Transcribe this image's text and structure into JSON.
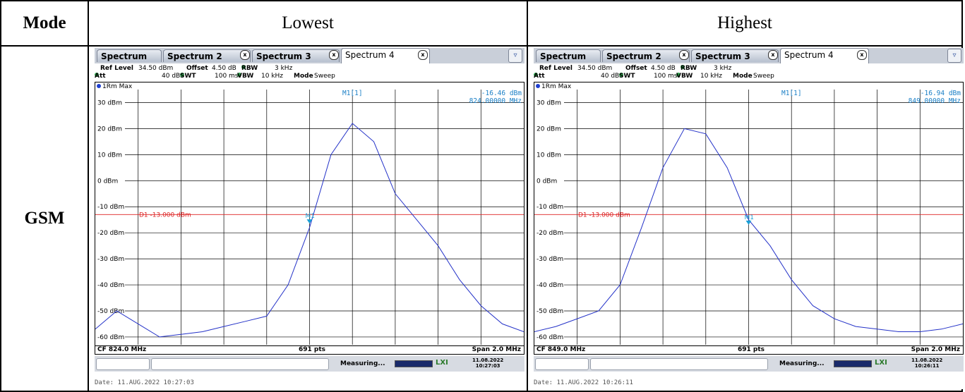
{
  "table": {
    "header": {
      "mode": "Mode",
      "lowest": "Lowest",
      "highest": "Highest"
    },
    "row_label": "GSM"
  },
  "panels": [
    {
      "tabs": [
        "Spectrum",
        "Spectrum 2",
        "Spectrum 3",
        "Spectrum 4"
      ],
      "ref_level_label": "Ref Level",
      "ref_level": "34.50 dBm",
      "offset_label": "Offset",
      "offset": "4.50 dB",
      "rbw_label": "RBW",
      "rbw": "3 kHz",
      "att_label": "Att",
      "att": "40 dB",
      "swt_label": "SWT",
      "swt": "100 ms",
      "vbw_label": "VBW",
      "vbw": "10 kHz",
      "mode_label": "Mode",
      "mode": "Sweep",
      "trace_label": "1Rm Max",
      "marker_name": "M1[1]",
      "marker_level": "-16.46 dBm",
      "marker_freq": "824.00000 MHz",
      "marker_tag": "M1",
      "display_line": "D1 -13.000 dBm",
      "cf": "CF 824.0 MHz",
      "pts": "691 pts",
      "span": "Span 2.0 MHz",
      "measuring": "Measuring...",
      "status_date": "11.08.2022",
      "status_time": "10:27:03",
      "date_footer": "Date: 11.AUG.2022  10:27:03"
    },
    {
      "tabs": [
        "Spectrum",
        "Spectrum 2",
        "Spectrum 3",
        "Spectrum 4"
      ],
      "ref_level_label": "Ref Level",
      "ref_level": "34.50 dBm",
      "offset_label": "Offset",
      "offset": "4.50 dB",
      "rbw_label": "RBW",
      "rbw": "3 kHz",
      "att_label": "Att",
      "att": "40 dB",
      "swt_label": "SWT",
      "swt": "100 ms",
      "vbw_label": "VBW",
      "vbw": "10 kHz",
      "mode_label": "Mode",
      "mode": "Sweep",
      "trace_label": "1Rm Max",
      "marker_name": "M1[1]",
      "marker_level": "-16.94 dBm",
      "marker_freq": "849.00000 MHz",
      "marker_tag": "M1",
      "display_line": "D1 -13.000 dBm",
      "cf": "CF 849.0 MHz",
      "pts": "691 pts",
      "span": "Span 2.0 MHz",
      "measuring": "Measuring...",
      "status_date": "11.08.2022",
      "status_time": "10:26:11",
      "date_footer": "Date: 11.AUG.2022  10:26:11"
    }
  ],
  "chart_data": [
    {
      "type": "line",
      "title": "",
      "xlabel": "",
      "ylabel": "",
      "x_unit": "MHz",
      "xlim": [
        823.0,
        825.0
      ],
      "ylim": [
        -63,
        35
      ],
      "yticks": [
        "30 dBm",
        "20 dBm",
        "10 dBm",
        "0 dBm",
        "-10 dBm",
        "-20 dBm",
        "-30 dBm",
        "-40 dBm",
        "-50 dBm",
        "-60 dBm"
      ],
      "ytick_values": [
        30,
        20,
        10,
        0,
        -10,
        -20,
        -30,
        -40,
        -50,
        -60
      ],
      "grid": true,
      "display_line": -13.0,
      "marker": {
        "x": 824.0,
        "y": -16.46
      },
      "series": [
        {
          "x": [
            823.0,
            823.1,
            823.2,
            823.3,
            823.4,
            823.5,
            823.6,
            823.7,
            823.8,
            823.9,
            824.0,
            824.1,
            824.2,
            824.3,
            824.4,
            824.5,
            824.6,
            824.7,
            824.8,
            824.9,
            825.0
          ],
          "values": [
            -57,
            -50,
            -55,
            -60,
            -59,
            -58,
            -56,
            -54,
            -52,
            -40,
            -18,
            10,
            22,
            15,
            -5,
            -15,
            -25,
            -38,
            -48,
            -55,
            -58
          ]
        }
      ]
    },
    {
      "type": "line",
      "title": "",
      "xlabel": "",
      "ylabel": "",
      "x_unit": "MHz",
      "xlim": [
        848.0,
        850.0
      ],
      "ylim": [
        -63,
        35
      ],
      "yticks": [
        "30 dBm",
        "20 dBm",
        "10 dBm",
        "0 dBm",
        "-10 dBm",
        "-20 dBm",
        "-30 dBm",
        "-40 dBm",
        "-50 dBm",
        "-60 dBm"
      ],
      "ytick_values": [
        30,
        20,
        10,
        0,
        -10,
        -20,
        -30,
        -40,
        -50,
        -60
      ],
      "grid": true,
      "display_line": -13.0,
      "marker": {
        "x": 849.0,
        "y": -16.94
      },
      "series": [
        {
          "x": [
            848.0,
            848.1,
            848.2,
            848.3,
            848.4,
            848.5,
            848.6,
            848.7,
            848.8,
            848.9,
            849.0,
            849.1,
            849.2,
            849.3,
            849.4,
            849.5,
            849.6,
            849.7,
            849.8,
            849.9,
            850.0
          ],
          "values": [
            -58,
            -56,
            -53,
            -50,
            -40,
            -18,
            5,
            20,
            18,
            5,
            -15,
            -25,
            -38,
            -48,
            -53,
            -56,
            -57,
            -58,
            -58,
            -57,
            -55
          ]
        }
      ]
    }
  ]
}
